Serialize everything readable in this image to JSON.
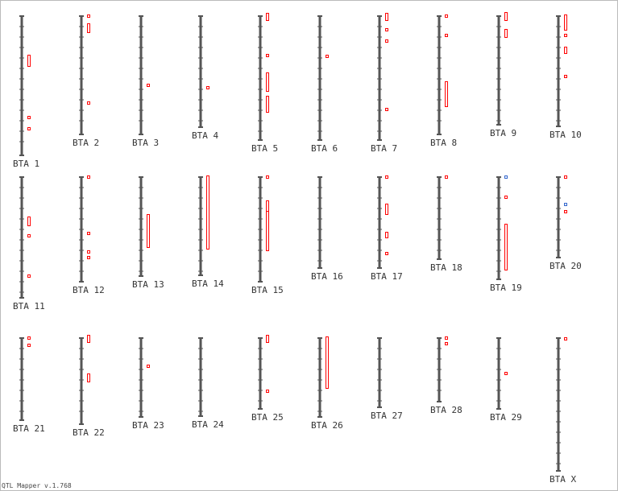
{
  "chromosomes": [
    "BTA 1",
    "BTA 2",
    "BTA 3",
    "BTA 4",
    "BTA 5",
    "BTA 6",
    "BTA 7",
    "BTA 8",
    "BTA 9",
    "BTA 10",
    "BTA 11",
    "BTA 12",
    "BTA 13",
    "BTA 14",
    "BTA 15",
    "BTA 16",
    "BTA 17",
    "BTA 18",
    "BTA 19",
    "BTA 20",
    "BTA 21",
    "BTA 22",
    "BTA 23",
    "BTA 24",
    "BTA 25",
    "BTA 26",
    "BTA 27",
    "BTA 28",
    "BTA 29",
    "BTA X"
  ],
  "footer": "QTL Mapper v.1.768"
}
